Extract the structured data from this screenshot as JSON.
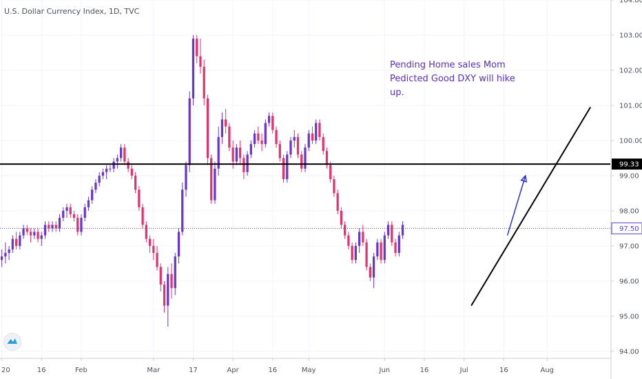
{
  "title": "U.S. Dollar Currency Index, 1D, TVC",
  "annotation": [
    "Pending Home sales Mom",
    "Pedicted Good DXY will hike",
    "up."
  ],
  "colors": {
    "up": "#6a35c9",
    "down": "#e0336f",
    "horizontal_line": "#000000",
    "trend_line": "#000000",
    "arrow": "#2d2fd6",
    "annotation": "#5b2fb8",
    "current_price_line": "#5b3cc4",
    "grid": "#f0f3fa",
    "axis": "#c9cdd6"
  },
  "chart_data": {
    "type": "candlestick",
    "title": "U.S. Dollar Currency Index, 1D, TVC",
    "ylim": [
      93.8,
      104.0
    ],
    "yticks": [
      94.0,
      95.0,
      96.0,
      97.0,
      98.0,
      99.0,
      100.0,
      101.0,
      102.0,
      103.0,
      104.0
    ],
    "ytick_labels": [
      "94.00",
      "95.00",
      "96.00",
      "97.00",
      "98.00",
      "99.00",
      "100.00",
      "101.00",
      "102.00",
      "103.00",
      "104.00"
    ],
    "x_ticks": [
      {
        "label": "20",
        "index": 0
      },
      {
        "label": "16",
        "index": 11
      },
      {
        "label": "Feb",
        "index": 22
      },
      {
        "label": "Mar",
        "index": 42
      },
      {
        "label": "17",
        "index": 53
      },
      {
        "label": "Apr",
        "index": 64
      },
      {
        "label": "16",
        "index": 75
      },
      {
        "label": "May",
        "index": 85
      },
      {
        "label": "Jun",
        "index": 106
      },
      {
        "label": "16",
        "index": 117
      },
      {
        "label": "Jul",
        "index": 128
      },
      {
        "label": "16",
        "index": 139
      },
      {
        "label": "Aug",
        "index": 151
      }
    ],
    "x_range": [
      -0.5,
      168.5
    ],
    "ohlc": [
      [
        96.6,
        96.9,
        96.4,
        96.7
      ],
      [
        96.7,
        97.1,
        96.5,
        96.8
      ],
      [
        96.8,
        97.0,
        96.6,
        96.9
      ],
      [
        96.9,
        97.3,
        96.8,
        97.2
      ],
      [
        97.2,
        97.4,
        96.9,
        97.0
      ],
      [
        97.0,
        97.4,
        96.9,
        97.3
      ],
      [
        97.3,
        97.6,
        97.2,
        97.5
      ],
      [
        97.5,
        97.6,
        97.3,
        97.4
      ],
      [
        97.4,
        97.5,
        97.1,
        97.3
      ],
      [
        97.3,
        97.5,
        97.2,
        97.4
      ],
      [
        97.4,
        97.5,
        97.1,
        97.2
      ],
      [
        97.2,
        97.4,
        97.0,
        97.3
      ],
      [
        97.3,
        97.7,
        97.2,
        97.6
      ],
      [
        97.6,
        97.7,
        97.4,
        97.5
      ],
      [
        97.5,
        97.7,
        97.4,
        97.6
      ],
      [
        97.6,
        97.7,
        97.4,
        97.5
      ],
      [
        97.5,
        97.9,
        97.4,
        97.8
      ],
      [
        97.8,
        98.1,
        97.7,
        98.0
      ],
      [
        98.0,
        98.2,
        97.8,
        98.1
      ],
      [
        98.1,
        98.2,
        97.8,
        97.9
      ],
      [
        97.9,
        98.0,
        97.7,
        97.8
      ],
      [
        97.8,
        97.9,
        97.3,
        97.4
      ],
      [
        97.4,
        97.9,
        97.3,
        97.8
      ],
      [
        97.8,
        98.2,
        97.7,
        98.1
      ],
      [
        98.1,
        98.4,
        98.0,
        98.3
      ],
      [
        98.3,
        98.7,
        98.2,
        98.6
      ],
      [
        98.6,
        98.9,
        98.5,
        98.8
      ],
      [
        98.8,
        99.1,
        98.7,
        99.0
      ],
      [
        99.0,
        99.2,
        98.9,
        99.1
      ],
      [
        99.1,
        99.3,
        98.9,
        99.2
      ],
      [
        99.2,
        99.3,
        99.1,
        99.2
      ],
      [
        99.2,
        99.5,
        99.1,
        99.4
      ],
      [
        99.4,
        99.6,
        99.2,
        99.5
      ],
      [
        99.5,
        99.9,
        99.4,
        99.8
      ],
      [
        99.8,
        99.9,
        99.3,
        99.4
      ],
      [
        99.4,
        99.5,
        99.1,
        99.2
      ],
      [
        99.2,
        99.3,
        98.9,
        99.0
      ],
      [
        99.0,
        99.1,
        98.5,
        98.6
      ],
      [
        98.6,
        98.7,
        98.0,
        98.1
      ],
      [
        98.1,
        98.2,
        97.5,
        97.6
      ],
      [
        97.6,
        97.7,
        97.1,
        97.2
      ],
      [
        97.2,
        97.3,
        96.8,
        97.0
      ],
      [
        97.0,
        97.2,
        96.6,
        96.8
      ],
      [
        96.8,
        97.0,
        96.3,
        96.4
      ],
      [
        96.4,
        96.5,
        95.7,
        95.9
      ],
      [
        95.9,
        96.0,
        95.1,
        95.3
      ],
      [
        95.3,
        96.4,
        94.7,
        96.2
      ],
      [
        96.2,
        96.5,
        95.5,
        95.8
      ],
      [
        95.8,
        96.8,
        95.6,
        96.7
      ],
      [
        96.7,
        97.5,
        96.5,
        97.4
      ],
      [
        97.4,
        98.8,
        97.3,
        98.6
      ],
      [
        98.6,
        99.4,
        98.4,
        99.3
      ],
      [
        99.3,
        101.4,
        99.1,
        101.2
      ],
      [
        101.2,
        103.0,
        101.0,
        102.9
      ],
      [
        102.9,
        103.0,
        102.2,
        102.4
      ],
      [
        102.4,
        102.9,
        101.9,
        102.1
      ],
      [
        102.1,
        102.3,
        101.0,
        101.2
      ],
      [
        101.2,
        101.3,
        99.3,
        99.5
      ],
      [
        99.5,
        99.6,
        98.2,
        98.3
      ],
      [
        98.3,
        99.4,
        98.2,
        99.2
      ],
      [
        99.2,
        100.4,
        99.0,
        100.1
      ],
      [
        100.1,
        100.8,
        99.9,
        100.6
      ],
      [
        100.6,
        100.9,
        100.2,
        100.4
      ],
      [
        100.4,
        100.5,
        99.7,
        99.8
      ],
      [
        99.8,
        100.0,
        99.2,
        99.4
      ],
      [
        99.4,
        99.9,
        99.3,
        99.8
      ],
      [
        99.8,
        100.0,
        99.3,
        99.5
      ],
      [
        99.5,
        99.6,
        98.9,
        99.1
      ],
      [
        99.1,
        99.7,
        99.0,
        99.6
      ],
      [
        99.6,
        100.0,
        99.5,
        99.9
      ],
      [
        99.9,
        100.3,
        99.8,
        100.2
      ],
      [
        100.2,
        100.4,
        99.9,
        100.0
      ],
      [
        100.0,
        100.2,
        99.7,
        99.9
      ],
      [
        99.9,
        100.6,
        99.8,
        100.5
      ],
      [
        100.5,
        100.8,
        100.4,
        100.7
      ],
      [
        100.7,
        100.8,
        100.2,
        100.3
      ],
      [
        100.3,
        100.4,
        99.8,
        99.9
      ],
      [
        99.9,
        100.0,
        99.4,
        99.5
      ],
      [
        99.5,
        99.6,
        98.8,
        98.9
      ],
      [
        98.9,
        99.7,
        98.8,
        99.6
      ],
      [
        99.6,
        100.1,
        99.5,
        100.0
      ],
      [
        100.0,
        100.3,
        99.8,
        100.1
      ],
      [
        100.1,
        100.2,
        99.5,
        99.6
      ],
      [
        99.6,
        99.7,
        99.1,
        99.2
      ],
      [
        99.2,
        99.9,
        99.1,
        99.8
      ],
      [
        99.8,
        100.3,
        99.7,
        100.2
      ],
      [
        100.2,
        100.4,
        99.9,
        100.0
      ],
      [
        100.0,
        100.6,
        99.9,
        100.5
      ],
      [
        100.5,
        100.6,
        100.0,
        100.1
      ],
      [
        100.1,
        100.2,
        99.6,
        99.7
      ],
      [
        99.7,
        99.8,
        99.2,
        99.3
      ],
      [
        99.3,
        99.4,
        98.8,
        98.9
      ],
      [
        98.9,
        99.0,
        98.4,
        98.5
      ],
      [
        98.5,
        98.6,
        97.9,
        98.0
      ],
      [
        98.0,
        98.1,
        97.5,
        97.6
      ],
      [
        97.6,
        97.7,
        97.2,
        97.3
      ],
      [
        97.3,
        97.4,
        96.9,
        97.0
      ],
      [
        97.0,
        97.1,
        96.5,
        96.6
      ],
      [
        96.6,
        97.1,
        96.5,
        97.0
      ],
      [
        97.0,
        97.5,
        96.8,
        97.4
      ],
      [
        97.4,
        97.6,
        97.0,
        97.1
      ],
      [
        97.1,
        97.2,
        96.3,
        96.4
      ],
      [
        96.4,
        96.5,
        96.0,
        96.1
      ],
      [
        96.1,
        96.8,
        95.8,
        96.7
      ],
      [
        96.7,
        97.2,
        96.6,
        97.1
      ],
      [
        97.1,
        97.2,
        96.5,
        96.6
      ],
      [
        96.6,
        97.4,
        96.5,
        97.3
      ],
      [
        97.3,
        97.7,
        97.2,
        97.6
      ],
      [
        97.6,
        97.7,
        97.0,
        97.1
      ],
      [
        97.1,
        97.2,
        96.7,
        96.8
      ],
      [
        96.8,
        97.4,
        96.7,
        97.3
      ],
      [
        97.3,
        97.7,
        97.2,
        97.6
      ]
    ],
    "ohlc_start_index": 0,
    "horizontal_line": {
      "y": 99.33,
      "label": "99.33"
    },
    "current_price": {
      "y": 97.5,
      "label": "97.50"
    },
    "trend_line": {
      "start": {
        "index": 130,
        "y": 95.3
      },
      "end": {
        "index": 163,
        "y": 100.95
      }
    },
    "arrow": {
      "start": {
        "index": 140,
        "y": 97.3
      },
      "end": {
        "index": 145,
        "y": 99.0
      }
    }
  }
}
